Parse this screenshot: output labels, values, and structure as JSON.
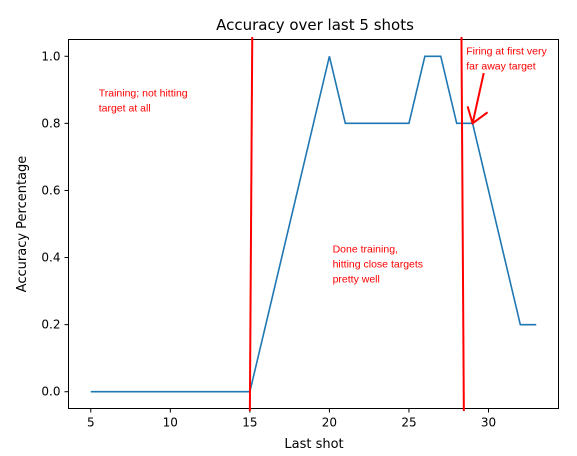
{
  "chart_data": {
    "type": "line",
    "title": "Accuracy over last 5 shots",
    "xlabel": "Last shot",
    "ylabel": "Accuracy Percentage",
    "xlim": [
      3.6,
      34.4
    ],
    "ylim": [
      -0.05,
      1.05
    ],
    "xticks": [
      5,
      10,
      15,
      20,
      25,
      30
    ],
    "yticks": [
      0.0,
      0.2,
      0.4,
      0.6,
      0.8,
      1.0
    ],
    "xtick_labels": [
      "5",
      "10",
      "15",
      "20",
      "25",
      "30"
    ],
    "ytick_labels": [
      "0.0",
      "0.2",
      "0.4",
      "0.6",
      "0.8",
      "1.0"
    ],
    "grid": false,
    "line_color": "#1f77b4",
    "series": [
      {
        "x": [
          5,
          6,
          7,
          8,
          9,
          10,
          11,
          12,
          13,
          14,
          15,
          16,
          17,
          18,
          19,
          20,
          21,
          22,
          23,
          24,
          25,
          26,
          27,
          28,
          29,
          30,
          31,
          32,
          33
        ],
        "values": [
          0.0,
          0.0,
          0.0,
          0.0,
          0.0,
          0.0,
          0.0,
          0.0,
          0.0,
          0.0,
          0.0,
          0.2,
          0.4,
          0.6,
          0.8,
          1.0,
          0.8,
          0.8,
          0.8,
          0.8,
          0.8,
          1.0,
          1.0,
          0.8,
          0.8,
          0.6,
          0.4,
          0.2,
          0.2
        ]
      }
    ],
    "annotation_color": "#ff0000",
    "annotations": [
      {
        "lines": [
          "Training; not hitting",
          "target at all"
        ],
        "x": 5.5,
        "y": 0.88
      },
      {
        "lines": [
          "Done training,",
          "hitting close targets",
          "pretty well"
        ],
        "x": 20.2,
        "y": 0.415
      },
      {
        "lines": [
          "Firing at first very",
          "far away target"
        ],
        "x": 28.6,
        "y": 1.005
      }
    ],
    "divider_lines": [
      {
        "x_top": 15.15,
        "x_bottom": 15.0
      },
      {
        "x_top": 28.3,
        "x_bottom": 28.45
      }
    ],
    "arrow": {
      "from": [
        29.7,
        0.95
      ],
      "to": [
        29.0,
        0.8
      ]
    }
  }
}
